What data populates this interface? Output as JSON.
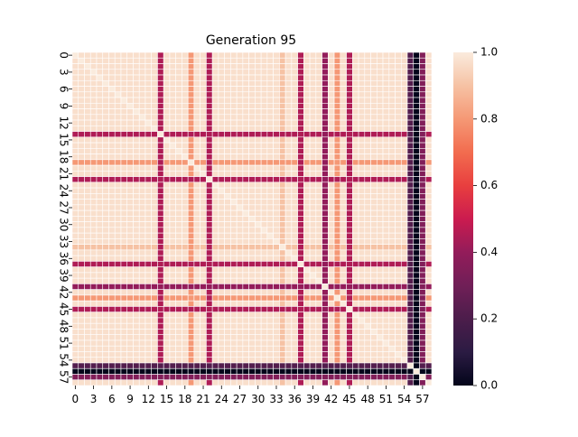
{
  "chart_data": {
    "type": "heatmap",
    "title": "Generation 95",
    "xlabel": "",
    "ylabel": "",
    "n": 59,
    "tick_step": 3,
    "x_tick_labels": [
      "0",
      "3",
      "6",
      "9",
      "12",
      "15",
      "18",
      "21",
      "24",
      "27",
      "30",
      "33",
      "36",
      "39",
      "42",
      "45",
      "48",
      "51",
      "54",
      "57"
    ],
    "y_tick_labels": [
      "0",
      "3",
      "6",
      "9",
      "12",
      "15",
      "18",
      "21",
      "24",
      "27",
      "30",
      "33",
      "36",
      "39",
      "42",
      "45",
      "48",
      "51",
      "54",
      "57"
    ],
    "colorbar": {
      "vmin": 0.0,
      "vmax": 1.0,
      "ticks": [
        0.0,
        0.2,
        0.4,
        0.6,
        0.8,
        1.0
      ],
      "tick_labels": [
        "0.0",
        "0.2",
        "0.4",
        "0.6",
        "0.8",
        "1.0"
      ],
      "colormap": "rocket"
    },
    "background_value": 0.97,
    "diagonal_value": 1.0,
    "lines": [
      {
        "index": 14,
        "value": 0.45
      },
      {
        "index": 19,
        "value": 0.8
      },
      {
        "index": 22,
        "value": 0.45
      },
      {
        "index": 34,
        "value": 0.9
      },
      {
        "index": 37,
        "value": 0.45
      },
      {
        "index": 41,
        "value": 0.4
      },
      {
        "index": 43,
        "value": 0.8
      },
      {
        "index": 45,
        "value": 0.45
      },
      {
        "index": 55,
        "value": 0.22
      },
      {
        "index": 56,
        "value": 0.0
      },
      {
        "index": 57,
        "value": 0.35
      }
    ],
    "grid_lines": true,
    "grid_color": "#ffffff"
  }
}
